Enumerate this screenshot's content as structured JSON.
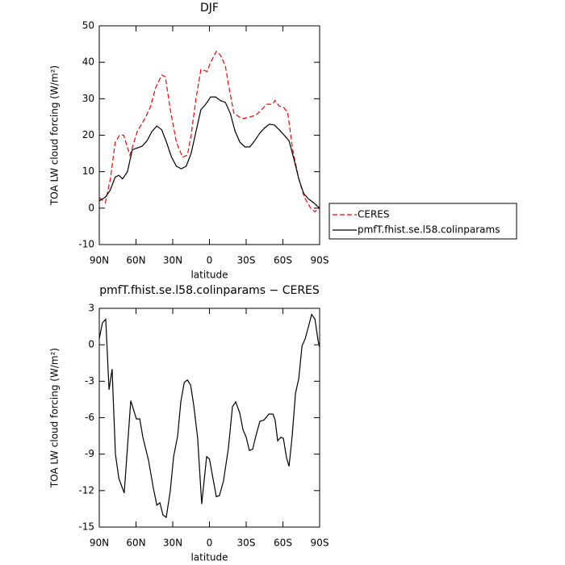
{
  "chart_data": [
    {
      "type": "line",
      "title": "DJF",
      "xlabel": "latitude",
      "ylabel": "TOA LW cloud forcing (W/m²)",
      "xlim": [
        90,
        -90
      ],
      "ylim": [
        -10,
        50
      ],
      "xticks": [
        {
          "value": 90,
          "label": "90N"
        },
        {
          "value": 60,
          "label": "60N"
        },
        {
          "value": 30,
          "label": "30N"
        },
        0,
        {
          "value": -30,
          "label": "30S"
        },
        {
          "value": -60,
          "label": "60S"
        },
        {
          "value": -90,
          "label": "90S"
        }
      ],
      "yticks": [
        -10,
        0,
        10,
        20,
        30,
        40,
        50
      ],
      "legend": "right",
      "series": [
        {
          "name": "CERES",
          "color": "#ff0000",
          "dash": true,
          "x": [
            90,
            85,
            81,
            77,
            73.5,
            70,
            65,
            59,
            52,
            48,
            44,
            39,
            36,
            32,
            27,
            22,
            18,
            15,
            11,
            7,
            2,
            -1,
            -5.6,
            -9,
            -13,
            -16,
            -20,
            -26.7,
            -33,
            -38,
            -42.5,
            -47,
            -51.7,
            -53.5,
            -57,
            -61,
            -64,
            -68,
            -73,
            -77.5,
            -82.7,
            -86,
            -90
          ],
          "values": [
            2.9,
            1.5,
            8,
            18,
            20,
            20,
            14.5,
            21,
            25,
            28,
            33,
            36.5,
            36,
            27,
            18,
            14,
            14.5,
            20,
            30,
            38,
            37.5,
            40,
            43,
            42,
            39,
            33,
            26,
            24.5,
            25,
            25.5,
            27,
            28.5,
            28.5,
            29.5,
            28,
            27.5,
            26,
            16,
            8,
            3,
            0,
            -1,
            0
          ]
        },
        {
          "name": "pmfT.fhist.se.l58.colinparams",
          "color": "#000000",
          "dash": false,
          "x": [
            90,
            85,
            81,
            77,
            74,
            71,
            67,
            63,
            59,
            55,
            51,
            47,
            43,
            39,
            35,
            31,
            27,
            23,
            19,
            15,
            11,
            7,
            3,
            -1,
            -5,
            -9,
            -13,
            -17,
            -21,
            -25,
            -29,
            -33,
            -37,
            -41,
            -45,
            -49,
            -53,
            -57,
            -61,
            -65,
            -69,
            -73,
            -77,
            -81,
            -85,
            -90
          ],
          "values": [
            2,
            3,
            5,
            8.5,
            9,
            8,
            10,
            16,
            16.5,
            17,
            18.5,
            21,
            22.5,
            21.5,
            18,
            14,
            11.5,
            10.8,
            11.5,
            15,
            21,
            27,
            28.5,
            30.5,
            30.5,
            29.5,
            29,
            26,
            21,
            18,
            16.8,
            16.8,
            18.5,
            20.5,
            22,
            23,
            22.8,
            21.5,
            20,
            18.5,
            13.5,
            8,
            4,
            2.5,
            1.5,
            0
          ]
        }
      ]
    },
    {
      "type": "line",
      "title": "pmfT.fhist.se.l58.colinparams − CERES",
      "xlabel": "latitude",
      "ylabel": "TOA LW cloud forcing (W/m²)",
      "xlim": [
        90,
        -90
      ],
      "ylim": [
        -15,
        3
      ],
      "xticks": [
        {
          "value": 90,
          "label": "90N"
        },
        {
          "value": 60,
          "label": "60N"
        },
        {
          "value": 30,
          "label": "30N"
        },
        0,
        {
          "value": -30,
          "label": "30S"
        },
        {
          "value": -60,
          "label": "60S"
        },
        {
          "value": -90,
          "label": "90S"
        }
      ],
      "yticks": [
        -15,
        -12,
        -9,
        -6,
        -3,
        0,
        3
      ],
      "series": [
        {
          "color": "#000000",
          "dash": false,
          "x": [
            90,
            87.4,
            84.7,
            82,
            79.5,
            76.8,
            74,
            69.6,
            64.3,
            59.7,
            57,
            54.4,
            49.8,
            45.8,
            43,
            40.5,
            38,
            35.3,
            32,
            29.3,
            26,
            23.4,
            20.6,
            18,
            15.4,
            12.8,
            9.6,
            6.3,
            2.3,
            0,
            -2.9,
            -5.6,
            -8.2,
            -11.5,
            -15.5,
            -18.8,
            -21.4,
            -24.7,
            -27.4,
            -30,
            -32.6,
            -35.3,
            -37.9,
            -41.2,
            -44.5,
            -48.5,
            -51.8,
            -53.7,
            -55.7,
            -58.4,
            -60.4,
            -63,
            -65,
            -67.6,
            -70.3,
            -72.9,
            -75.6,
            -78.2,
            -80.9,
            -83.5,
            -86.2,
            -88.8,
            -90
          ],
          "values": [
            0.5,
            1.8,
            2.1,
            -3.7,
            -2,
            -9,
            -11,
            -12.2,
            -4.6,
            -6.1,
            -6.1,
            -7.6,
            -9.5,
            -11.8,
            -13.2,
            -13,
            -14,
            -14.2,
            -12,
            -9.2,
            -7.5,
            -4.7,
            -3.1,
            -2.9,
            -3.3,
            -5,
            -7.7,
            -13.1,
            -9.2,
            -9.4,
            -11,
            -12.5,
            -12.4,
            -11.2,
            -8.5,
            -5.1,
            -4.7,
            -5.6,
            -7,
            -7.6,
            -8.7,
            -8.6,
            -7.5,
            -6.3,
            -6.2,
            -5.7,
            -5.7,
            -6.2,
            -7.9,
            -7.6,
            -7.7,
            -9.3,
            -10,
            -7.5,
            -4,
            -2.8,
            -0.1,
            0.5,
            1.5,
            2.5,
            2.1,
            0.3,
            -0.2
          ]
        }
      ]
    }
  ]
}
